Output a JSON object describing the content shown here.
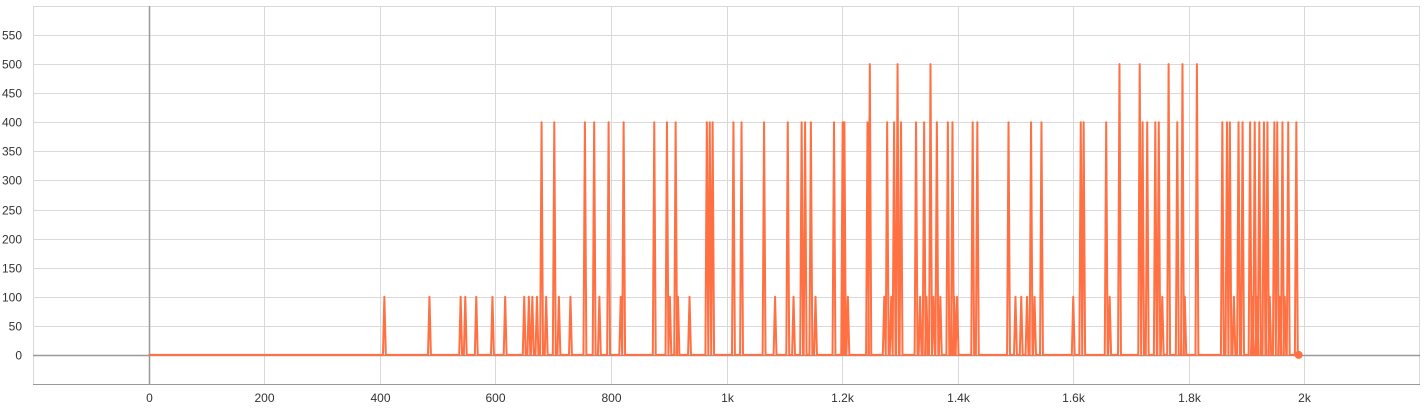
{
  "colors": {
    "series": "#ff7043",
    "grid": "#d9d9d9",
    "axis": "#999999",
    "tick_text": "#333333",
    "background": "#ffffff"
  },
  "chart_data": {
    "type": "line",
    "title": "",
    "xlabel": "",
    "ylabel": "",
    "xlim": [
      -200,
      2200
    ],
    "ylim": [
      -50,
      600
    ],
    "grid": true,
    "legend": "none",
    "x_ticks": [
      {
        "value": 0,
        "label": "0"
      },
      {
        "value": 200,
        "label": "200"
      },
      {
        "value": 400,
        "label": "400"
      },
      {
        "value": 600,
        "label": "600"
      },
      {
        "value": 800,
        "label": "800"
      },
      {
        "value": 1000,
        "label": "1k"
      },
      {
        "value": 1200,
        "label": "1.2k"
      },
      {
        "value": 1400,
        "label": "1.4k"
      },
      {
        "value": 1600,
        "label": "1.6k"
      },
      {
        "value": 1800,
        "label": "1.8k"
      },
      {
        "value": 2000,
        "label": "2k"
      }
    ],
    "y_ticks": [
      {
        "value": 0,
        "label": "0"
      },
      {
        "value": 50,
        "label": "50"
      },
      {
        "value": 100,
        "label": "100"
      },
      {
        "value": 150,
        "label": "150"
      },
      {
        "value": 200,
        "label": "200"
      },
      {
        "value": 250,
        "label": "250"
      },
      {
        "value": 300,
        "label": "300"
      },
      {
        "value": 350,
        "label": "350"
      },
      {
        "value": 400,
        "label": "400"
      },
      {
        "value": 450,
        "label": "450"
      },
      {
        "value": 500,
        "label": "500"
      },
      {
        "value": 550,
        "label": "550"
      }
    ],
    "series": [
      {
        "spikes": [
          [
            408,
            100
          ],
          [
            486,
            100
          ],
          [
            540,
            100
          ],
          [
            548,
            100
          ],
          [
            567,
            100
          ],
          [
            595,
            100
          ],
          [
            617,
            100
          ],
          [
            650,
            100
          ],
          [
            658,
            100
          ],
          [
            664,
            100
          ],
          [
            672,
            100
          ],
          [
            680,
            400
          ],
          [
            688,
            100
          ],
          [
            702,
            400
          ],
          [
            710,
            100
          ],
          [
            730,
            100
          ],
          [
            755,
            400
          ],
          [
            771,
            400
          ],
          [
            780,
            100
          ],
          [
            796,
            400
          ],
          [
            817,
            100
          ],
          [
            822,
            400
          ],
          [
            875,
            400
          ],
          [
            897,
            400
          ],
          [
            902,
            100
          ],
          [
            912,
            400
          ],
          [
            916,
            100
          ],
          [
            936,
            100
          ],
          [
            966,
            400
          ],
          [
            971,
            400
          ],
          [
            976,
            400
          ],
          [
            1012,
            400
          ],
          [
            1026,
            400
          ],
          [
            1065,
            400
          ],
          [
            1084,
            100
          ],
          [
            1106,
            400
          ],
          [
            1116,
            100
          ],
          [
            1130,
            400
          ],
          [
            1136,
            400
          ],
          [
            1146,
            400
          ],
          [
            1154,
            100
          ],
          [
            1186,
            400
          ],
          [
            1201,
            400
          ],
          [
            1204,
            400
          ],
          [
            1210,
            100
          ],
          [
            1244,
            400
          ],
          [
            1248,
            500
          ],
          [
            1273,
            100
          ],
          [
            1278,
            400
          ],
          [
            1285,
            100
          ],
          [
            1290,
            400
          ],
          [
            1296,
            500
          ],
          [
            1302,
            400
          ],
          [
            1328,
            400
          ],
          [
            1335,
            100
          ],
          [
            1342,
            400
          ],
          [
            1346,
            100
          ],
          [
            1353,
            500
          ],
          [
            1358,
            100
          ],
          [
            1364,
            400
          ],
          [
            1370,
            100
          ],
          [
            1383,
            400
          ],
          [
            1391,
            400
          ],
          [
            1394,
            100
          ],
          [
            1399,
            100
          ],
          [
            1426,
            400
          ],
          [
            1434,
            400
          ],
          [
            1488,
            400
          ],
          [
            1500,
            100
          ],
          [
            1510,
            100
          ],
          [
            1520,
            100
          ],
          [
            1527,
            400
          ],
          [
            1533,
            100
          ],
          [
            1545,
            400
          ],
          [
            1600,
            100
          ],
          [
            1613,
            400
          ],
          [
            1618,
            400
          ],
          [
            1657,
            400
          ],
          [
            1663,
            100
          ],
          [
            1680,
            500
          ],
          [
            1715,
            500
          ],
          [
            1720,
            400
          ],
          [
            1728,
            400
          ],
          [
            1742,
            400
          ],
          [
            1748,
            400
          ],
          [
            1754,
            100
          ],
          [
            1765,
            500
          ],
          [
            1780,
            400
          ],
          [
            1789,
            500
          ],
          [
            1793,
            100
          ],
          [
            1814,
            500
          ],
          [
            1858,
            400
          ],
          [
            1866,
            400
          ],
          [
            1871,
            400
          ],
          [
            1878,
            100
          ],
          [
            1886,
            400
          ],
          [
            1893,
            400
          ],
          [
            1906,
            400
          ],
          [
            1910,
            100
          ],
          [
            1914,
            400
          ],
          [
            1918,
            100
          ],
          [
            1922,
            400
          ],
          [
            1930,
            400
          ],
          [
            1936,
            400
          ],
          [
            1940,
            100
          ],
          [
            1948,
            400
          ],
          [
            1953,
            400
          ],
          [
            1957,
            100
          ],
          [
            1962,
            400
          ],
          [
            1966,
            100
          ],
          [
            1972,
            400
          ],
          [
            1986,
            400
          ]
        ],
        "x_start": 0,
        "x_end": 1990,
        "last_point": [
          1990,
          0
        ]
      }
    ]
  }
}
